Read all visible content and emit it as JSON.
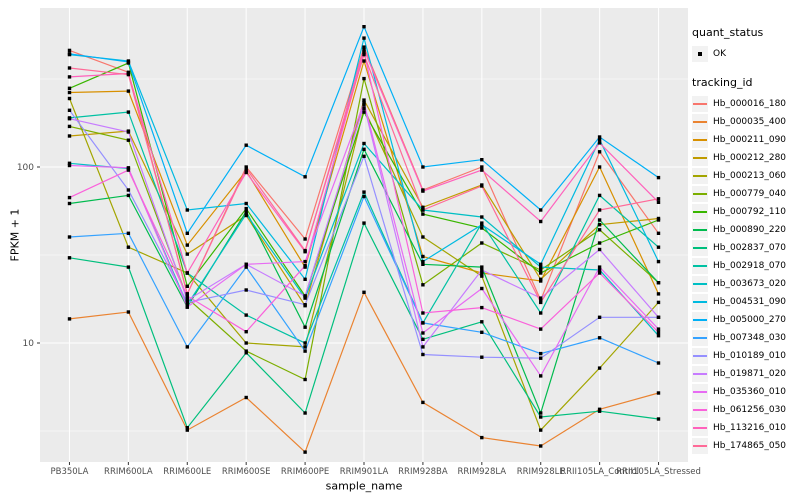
{
  "figure": {
    "panel_background": "#EBEBEB",
    "grid_color": "#FFFFFF",
    "tick_text_color": "#4D4D4D",
    "point_color": "#000000"
  },
  "legend": {
    "quant_status_title": "quant_status",
    "ok_label": "OK",
    "tracking_title": "tracking_id"
  },
  "chart_data": {
    "type": "line",
    "x_type": "categorical",
    "y_scale": "log10",
    "xlabel": "sample_name",
    "ylabel": "FPKM + 1",
    "y_major_ticks": [
      10,
      100
    ],
    "y_minor_ticks": [
      3.162,
      31.62,
      316.2
    ],
    "ylim": [
      2.1,
      800
    ],
    "legend_position": "right",
    "grid": true,
    "point_shape": "small black square (quant_status OK)",
    "categories": [
      "PB350LA",
      "RRIM600LA",
      "RRIM600LE",
      "RRIM600SE",
      "RRIM600PE",
      "RRIM901LA",
      "RRIM928BA",
      "RRIM928LA",
      "RRIM928LE",
      "RRII105LA_Control",
      "RRII105LA_Stressed"
    ],
    "series": [
      {
        "name": "Hb_000016_180",
        "color": "#F8766D",
        "values": [
          460,
          345,
          19,
          100,
          39,
          480,
          74,
          100,
          17.5,
          122,
          42
        ]
      },
      {
        "name": "Hb_000035_400",
        "color": "#EA8331",
        "values": [
          13.7,
          15,
          3.2,
          4.9,
          2.4,
          19.4,
          4.6,
          2.9,
          2.6,
          4.2,
          5.2
        ]
      },
      {
        "name": "Hb_000211_090",
        "color": "#D89000",
        "values": [
          265,
          270,
          36,
          95,
          27,
          400,
          31,
          25,
          22.5,
          100,
          19
        ]
      },
      {
        "name": "Hb_000212_280",
        "color": "#C09B00",
        "values": [
          150,
          160,
          32,
          53,
          16.3,
          240,
          59,
          79,
          23,
          47,
          51
        ]
      },
      {
        "name": "Hb_000213_060",
        "color": "#A3A500",
        "values": [
          245,
          35,
          25,
          10,
          9.5,
          215,
          40,
          24,
          3.2,
          7.2,
          17
        ]
      },
      {
        "name": "Hb_000779_040",
        "color": "#7CAE00",
        "values": [
          170,
          142,
          18,
          9,
          6.2,
          318,
          21.4,
          37,
          26,
          44,
          22
        ]
      },
      {
        "name": "Hb_000792_110",
        "color": "#39B600",
        "values": [
          280,
          390,
          21,
          58,
          18.5,
          205,
          54,
          45,
          25,
          37,
          50
        ]
      },
      {
        "name": "Hb_000890_220",
        "color": "#00BB4E",
        "values": [
          62,
          69,
          16,
          56,
          12.3,
          126,
          28,
          27,
          4.0,
          50,
          22
        ]
      },
      {
        "name": "Hb_002837_070",
        "color": "#00BF7D",
        "values": [
          30.5,
          27,
          3.3,
          8.8,
          4.0,
          48,
          10.5,
          13.2,
          3.8,
          4.1,
          3.7
        ]
      },
      {
        "name": "Hb_002918_070",
        "color": "#00C1A3",
        "values": [
          190,
          205,
          25,
          14.4,
          10,
          72,
          13,
          48,
          14.8,
          69,
          35
        ]
      },
      {
        "name": "Hb_003673_020",
        "color": "#00BFC4",
        "values": [
          105,
          98,
          16.5,
          54,
          18,
          136,
          57,
          52,
          27,
          26,
          11
        ]
      },
      {
        "name": "Hb_004531_090",
        "color": "#00BAE0",
        "values": [
          435,
          400,
          57,
          62,
          23,
          540,
          29,
          47,
          28,
          143,
          29
        ]
      },
      {
        "name": "Hb_005000_270",
        "color": "#00B0F6",
        "values": [
          440,
          395,
          42,
          133,
          88,
          627,
          100,
          110,
          57,
          148,
          87
        ]
      },
      {
        "name": "Hb_007348_030",
        "color": "#35A2FF",
        "values": [
          40,
          42,
          9.5,
          27,
          9,
          68,
          13,
          11.5,
          8.7,
          10.7,
          7.7
        ]
      },
      {
        "name": "Hb_010189_010",
        "color": "#9590FF",
        "values": [
          210,
          74,
          17,
          20,
          16.5,
          115,
          8.6,
          8.3,
          8.2,
          14,
          14
        ]
      },
      {
        "name": "Hb_019871_020",
        "color": "#C77CFF",
        "values": [
          188,
          158,
          17.5,
          28,
          18.5,
          225,
          9.5,
          26,
          18,
          34,
          14
        ]
      },
      {
        "name": "Hb_035360_010",
        "color": "#E76BF3",
        "values": [
          102,
          99,
          16,
          28,
          29,
          232,
          11.4,
          20.4,
          6.5,
          27,
          12
        ]
      },
      {
        "name": "Hb_061256_030",
        "color": "#FA62DB",
        "values": [
          67,
          96,
          18.5,
          11.6,
          27.5,
          450,
          14.8,
          15.9,
          12,
          25,
          11.5
        ]
      },
      {
        "name": "Hb_113216_010",
        "color": "#FF62BC",
        "values": [
          325,
          340,
          25,
          93,
          33,
          465,
          73,
          96,
          49,
          137,
          63
        ]
      },
      {
        "name": "Hb_174865_050",
        "color": "#FF6A98",
        "values": [
          365,
          335,
          19,
          98,
          33.5,
          435,
          57,
          78,
          17,
          57,
          66
        ]
      }
    ]
  }
}
